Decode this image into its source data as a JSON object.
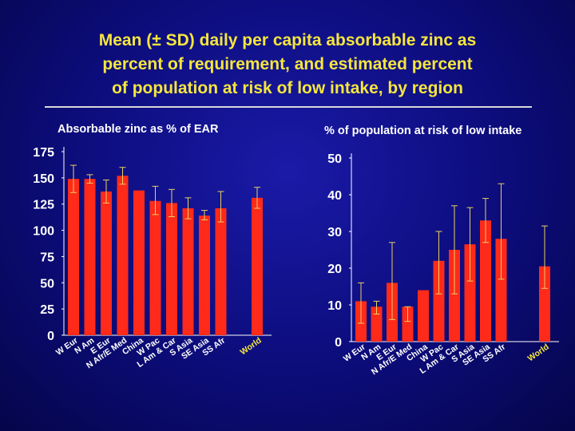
{
  "title_lines": [
    "Mean (± SD) daily per capita absorbable zinc as",
    "percent of requirement, and estimated percent",
    "of population at risk of low intake, by region"
  ],
  "colors": {
    "background": "#0c0c7a",
    "title": "#f5e63c",
    "bar": "#ff2a1a",
    "error_bar": "#e8d060",
    "text": "#ffffff",
    "world_label": "#f5e63c"
  },
  "chart_data": [
    {
      "type": "bar",
      "title": "Absorbable zinc as % of EAR",
      "categories": [
        "W Eur",
        "N Am",
        "E Eur",
        "N Afr/E Med",
        "China",
        "W Pac",
        "L Am & Car",
        "S Asia",
        "SE Asia",
        "SS Afr",
        "World"
      ],
      "values": [
        149,
        149,
        137,
        152,
        138,
        128,
        126,
        121,
        114,
        121,
        131
      ],
      "error_minus": [
        13,
        4,
        11,
        8,
        0,
        13,
        13,
        10,
        4,
        13,
        10
      ],
      "error_plus": [
        13,
        4,
        11,
        8,
        0,
        14,
        13,
        10,
        5,
        16,
        10
      ],
      "has_gap_before_last": true,
      "ylim": [
        0,
        175
      ],
      "yticks": [
        0,
        25,
        50,
        75,
        100,
        125,
        150,
        175
      ]
    },
    {
      "type": "bar",
      "title": "% of population at risk of low intake",
      "categories": [
        "W Eur",
        "N Am",
        "E Eur",
        "N Afr/E Med",
        "China",
        "W Pac",
        "L Am & Car",
        "S Asia",
        "SE Asia",
        "SS Afr",
        "World"
      ],
      "values": [
        11,
        9.5,
        16,
        9.5,
        14,
        22,
        25,
        26.5,
        33,
        28,
        20.5
      ],
      "error_minus": [
        6,
        2,
        10,
        4,
        0,
        9,
        12,
        10,
        6,
        11,
        6
      ],
      "error_plus": [
        5,
        1.5,
        11,
        0,
        0,
        8,
        12,
        10,
        6,
        15,
        11
      ],
      "has_gap_before_last": true,
      "ylim": [
        0,
        50
      ],
      "yticks": [
        0,
        10,
        20,
        30,
        40,
        50
      ]
    }
  ]
}
